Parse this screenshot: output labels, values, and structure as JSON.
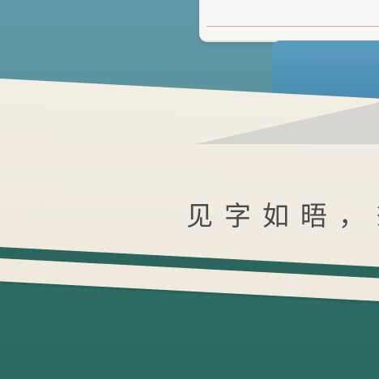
{
  "scene": {
    "caption": "见字如晤，想"
  },
  "colors": {
    "top_background": "#5f98a6",
    "paper": "#f2ede3",
    "cloth_blue": "#4b8ab0",
    "bottom_teal": "#2f6f66",
    "text": "#4a4a48"
  }
}
